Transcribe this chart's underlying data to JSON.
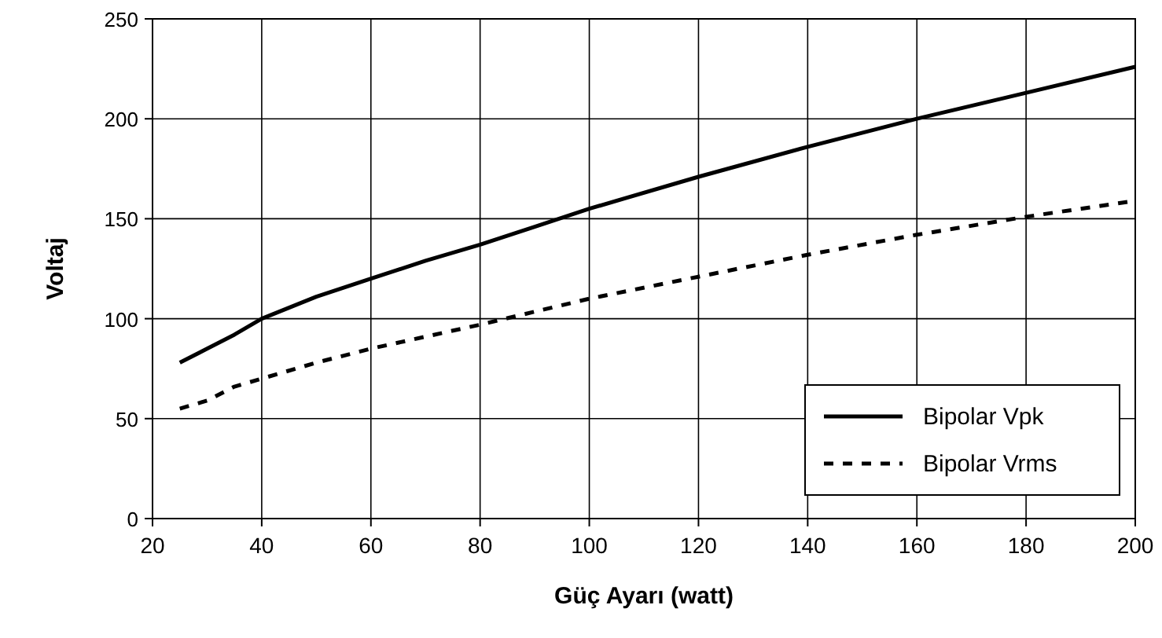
{
  "chart_data": {
    "type": "line",
    "xlabel": "Güç Ayarı (watt)",
    "ylabel": "Voltaj",
    "xlim": [
      20,
      200
    ],
    "xticks": [
      20,
      40,
      60,
      80,
      100,
      120,
      140,
      160,
      180,
      200
    ],
    "ylim": [
      0,
      250
    ],
    "yticks": [
      0,
      50,
      100,
      150,
      200,
      250
    ],
    "grid": true,
    "legend": "bottom right",
    "series": [
      {
        "name": "Bipolar Vpk",
        "color": "#000000",
        "line_style": "solid",
        "x": [
          25,
          30,
          35,
          40,
          50,
          60,
          70,
          80,
          90,
          100,
          120,
          140,
          160,
          180,
          200
        ],
        "values": [
          78,
          85,
          92,
          100,
          111,
          120,
          129,
          137,
          146,
          155,
          171,
          186,
          200,
          213,
          226
        ]
      },
      {
        "name": "Bipolar Vrms",
        "color": "#000000",
        "line_style": "dashed",
        "x": [
          25,
          30,
          35,
          40,
          50,
          60,
          70,
          80,
          100,
          120,
          140,
          160,
          180,
          200
        ],
        "values": [
          55,
          59,
          66,
          70,
          78,
          85,
          91,
          97,
          110,
          121,
          132,
          142,
          151,
          159
        ]
      }
    ]
  }
}
